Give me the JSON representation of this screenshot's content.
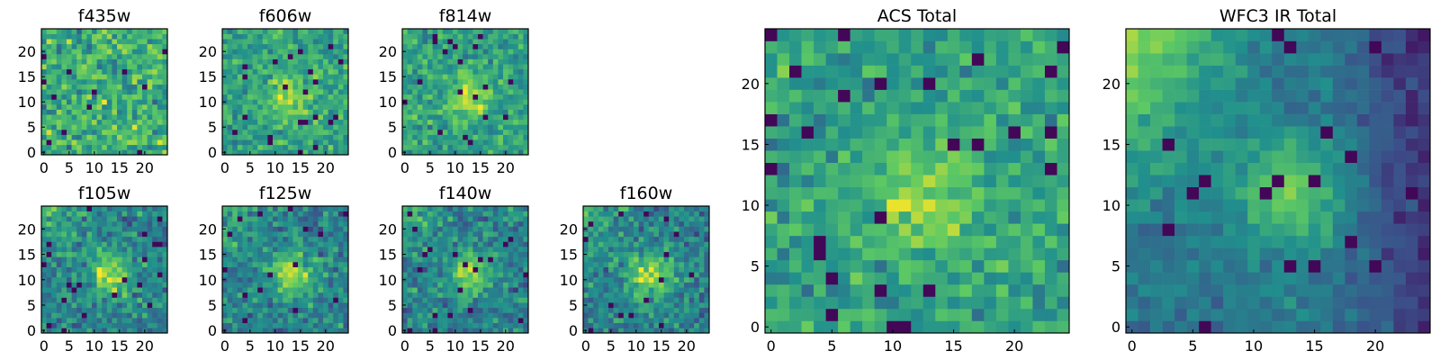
{
  "chart_data": {
    "type": "heatmap",
    "colormap": [
      "#440154",
      "#3b528b",
      "#21908d",
      "#5dc963",
      "#fde725"
    ],
    "grid_size": 25,
    "xticks": [
      "0",
      "5",
      "10",
      "15",
      "20"
    ],
    "yticks": [
      "0",
      "5",
      "10",
      "15",
      "20"
    ],
    "panels": [
      {
        "title": "f435w",
        "style": "noise",
        "seed": 11
      },
      {
        "title": "f606w",
        "style": "faint",
        "seed": 23
      },
      {
        "title": "f814w",
        "style": "faint",
        "seed": 37
      },
      {
        "title": "f105w",
        "style": "source",
        "seed": 41
      },
      {
        "title": "f125w",
        "style": "source",
        "seed": 53
      },
      {
        "title": "f140w",
        "style": "source",
        "seed": 67
      },
      {
        "title": "f160w",
        "style": "source",
        "seed": 79
      },
      {
        "title": "ACS Total",
        "style": "faint",
        "seed": 83
      },
      {
        "title": "WFC3 IR Total",
        "style": "ir",
        "seed": 97
      }
    ]
  }
}
